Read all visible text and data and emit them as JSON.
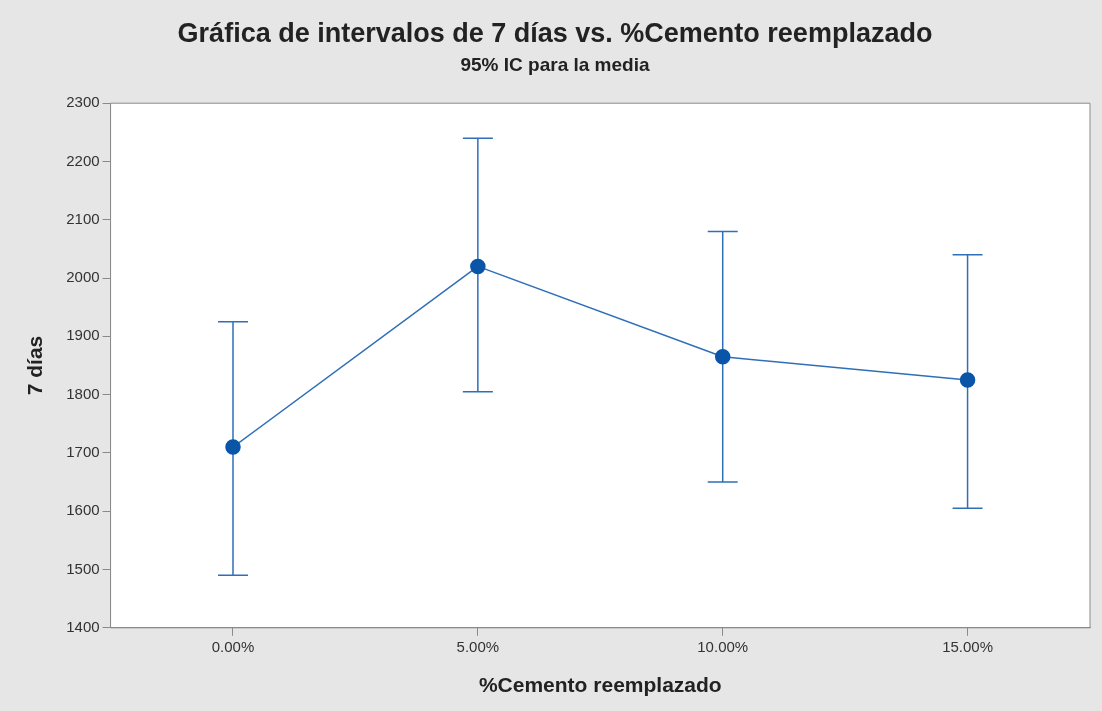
{
  "chart_data": {
    "type": "line",
    "title": "Gráfica de intervalos de 7 días vs. %Cemento reemplazado",
    "subtitle": "95% IC para la media",
    "xlabel": "%Cemento reemplazado",
    "ylabel": "7 días",
    "categories": [
      "0.00%",
      "5.00%",
      "10.00%",
      "15.00%"
    ],
    "series": [
      {
        "color": "#2f6fb8",
        "values": [
          1710,
          2020,
          1865,
          1825
        ],
        "errors": [
          [
            1490,
            1925
          ],
          [
            1805,
            2240
          ],
          [
            1650,
            2080
          ],
          [
            1605,
            2040
          ]
        ]
      }
    ],
    "ylim": [
      1400,
      2300
    ],
    "yticks": [
      1400,
      1500,
      1600,
      1700,
      1800,
      1900,
      2000,
      2100,
      2200,
      2300
    ],
    "grid": false,
    "legend": false,
    "marker": "circle",
    "line_style": "solid"
  }
}
